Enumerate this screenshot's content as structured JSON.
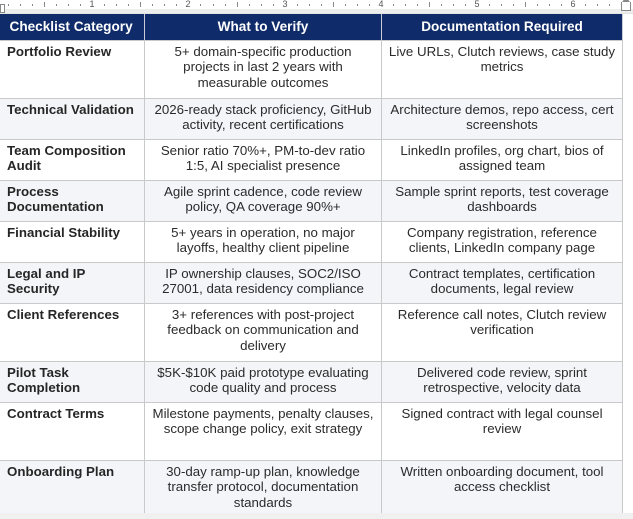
{
  "ruler": {
    "numbers": [
      "1",
      "2",
      "3",
      "4",
      "5",
      "6"
    ]
  },
  "table": {
    "headers": [
      "Checklist Category",
      "What to Verify",
      "Documentation Required"
    ],
    "rows": [
      {
        "category": "Portfolio Review",
        "verify": "5+ domain-specific production projects in last 2 years with measurable outcomes",
        "docs": "Live URLs, Clutch reviews, case study metrics"
      },
      {
        "category": "Technical Validation",
        "verify": "2026-ready stack proficiency, GitHub activity, recent certifications",
        "docs": "Architecture demos, repo access, cert screenshots"
      },
      {
        "category": "Team Composition Audit",
        "verify": "Senior ratio 70%+, PM-to-dev ratio 1:5, AI specialist presence",
        "docs": "LinkedIn profiles, org chart, bios of assigned team"
      },
      {
        "category": "Process Documentation",
        "verify": "Agile sprint cadence, code review policy, QA coverage 90%+",
        "docs": "Sample sprint reports, test coverage dashboards"
      },
      {
        "category": "Financial Stability",
        "verify": "5+ years in operation, no major layoffs, healthy client pipeline",
        "docs": "Company registration, reference clients, LinkedIn company page"
      },
      {
        "category": "Legal and IP Security",
        "verify": "IP ownership clauses, SOC2/ISO 27001, data residency compliance",
        "docs": "Contract templates, certification documents, legal review"
      },
      {
        "category": "Client References",
        "verify": "3+ references with post-project feedback on communication and delivery",
        "docs": "Reference call notes, Clutch review verification"
      },
      {
        "category": "Pilot Task Completion",
        "verify": "$5K-$10K paid prototype evaluating code quality and process",
        "docs": "Delivered code review, sprint retrospective, velocity data"
      },
      {
        "category": "Contract Terms",
        "verify": "Milestone payments, penalty clauses, scope change policy, exit strategy",
        "docs": "Signed contract with legal counsel review"
      },
      {
        "category": "Onboarding Plan",
        "verify": "30-day ramp-up plan, knowledge transfer protocol, documentation standards",
        "docs": "Written onboarding document, tool access checklist"
      }
    ]
  },
  "colors": {
    "header_bg": "#0f2b69",
    "header_text": "#ffffff",
    "alt_row_bg": "#f3f5f9",
    "border": "#c9c9c9"
  }
}
